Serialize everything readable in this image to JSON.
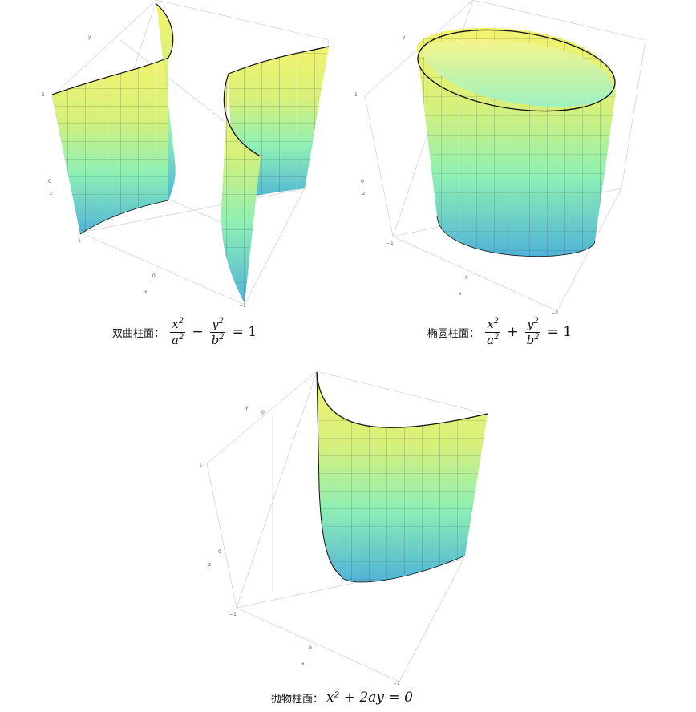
{
  "panels": [
    {
      "id": "hyperbolic",
      "caption_label": "双曲柱面：",
      "equation": {
        "lhs1_num": "x",
        "lhs1_den": "a",
        "op": "−",
        "lhs2_num": "y",
        "lhs2_den": "b",
        "rhs": "= 1"
      },
      "axis_labels": {
        "y": "y",
        "x": "x",
        "z": "z",
        "t1": "1",
        "t0": "0",
        "tm1": "−1"
      }
    },
    {
      "id": "elliptic",
      "caption_label": "椭圆柱面：",
      "equation": {
        "lhs1_num": "x",
        "lhs1_den": "a",
        "op": "+",
        "lhs2_num": "y",
        "lhs2_den": "b",
        "rhs": "= 1"
      },
      "axis_labels": {
        "y": "y",
        "x": "x",
        "z": "z",
        "t1": "1",
        "t0": "0",
        "tm1": "−1"
      }
    },
    {
      "id": "parabolic",
      "caption_label": "抛物柱面：",
      "equation_text": "x² + 2ay = 0",
      "axis_labels": {
        "y": "y",
        "x": "x",
        "z": "z",
        "t1": "1",
        "t0": "0",
        "tm1": "−1"
      }
    }
  ],
  "colors": {
    "top": "#f3f36e",
    "mid": "#8ef0b4",
    "bottom": "#4fb3d8",
    "grid": "#d5d5d5",
    "mesh": "#2d4a44",
    "edge": "#111111"
  }
}
